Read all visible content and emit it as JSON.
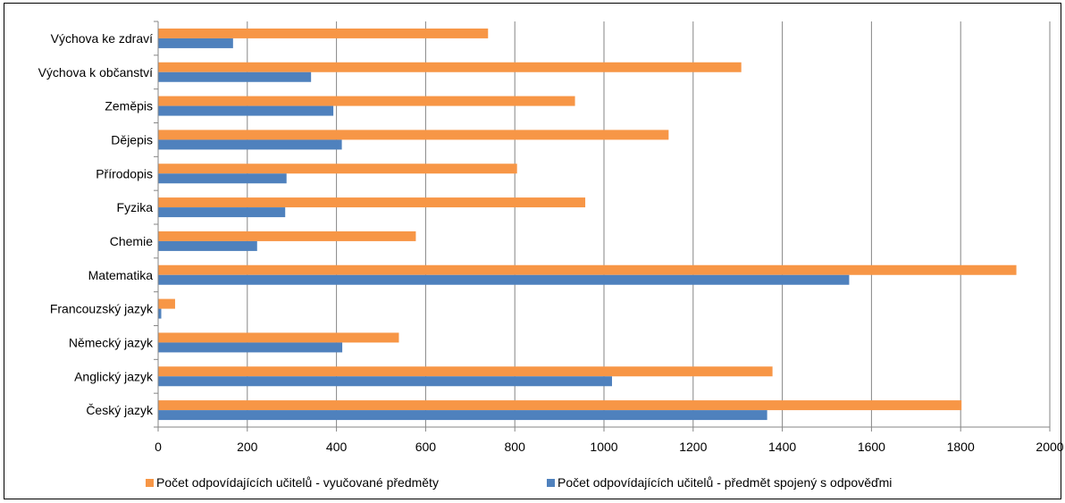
{
  "chart_data": {
    "type": "bar",
    "orientation": "horizontal",
    "categories": [
      "Výchova ke zdraví",
      "Výchova k občanství",
      "Zeměpis",
      "Dějepis",
      "Přírodopis",
      "Fyzika",
      "Chemie",
      "Matematika",
      "Francouzský jazyk",
      "Německý jazyk",
      "Anglický jazyk",
      "Český jazyk"
    ],
    "series": [
      {
        "name": "Počet odpovídajících učitelů - vyučované předměty",
        "color": "#F79646",
        "values": [
          740,
          1308,
          935,
          1145,
          805,
          958,
          578,
          1925,
          38,
          540,
          1378,
          1802
        ]
      },
      {
        "name": "Počet odpovídajících učitelů - předmět spojený s odpověďmi",
        "color": "#4F81BD",
        "values": [
          168,
          343,
          393,
          412,
          288,
          285,
          222,
          1550,
          7,
          413,
          1018,
          1366
        ]
      }
    ],
    "xlim": [
      0,
      2000
    ],
    "xticks": [
      "0",
      "200",
      "400",
      "600",
      "800",
      "1000",
      "1200",
      "1400",
      "1600",
      "1800",
      "2000"
    ],
    "grid": "vertical",
    "legend": "bottom"
  }
}
